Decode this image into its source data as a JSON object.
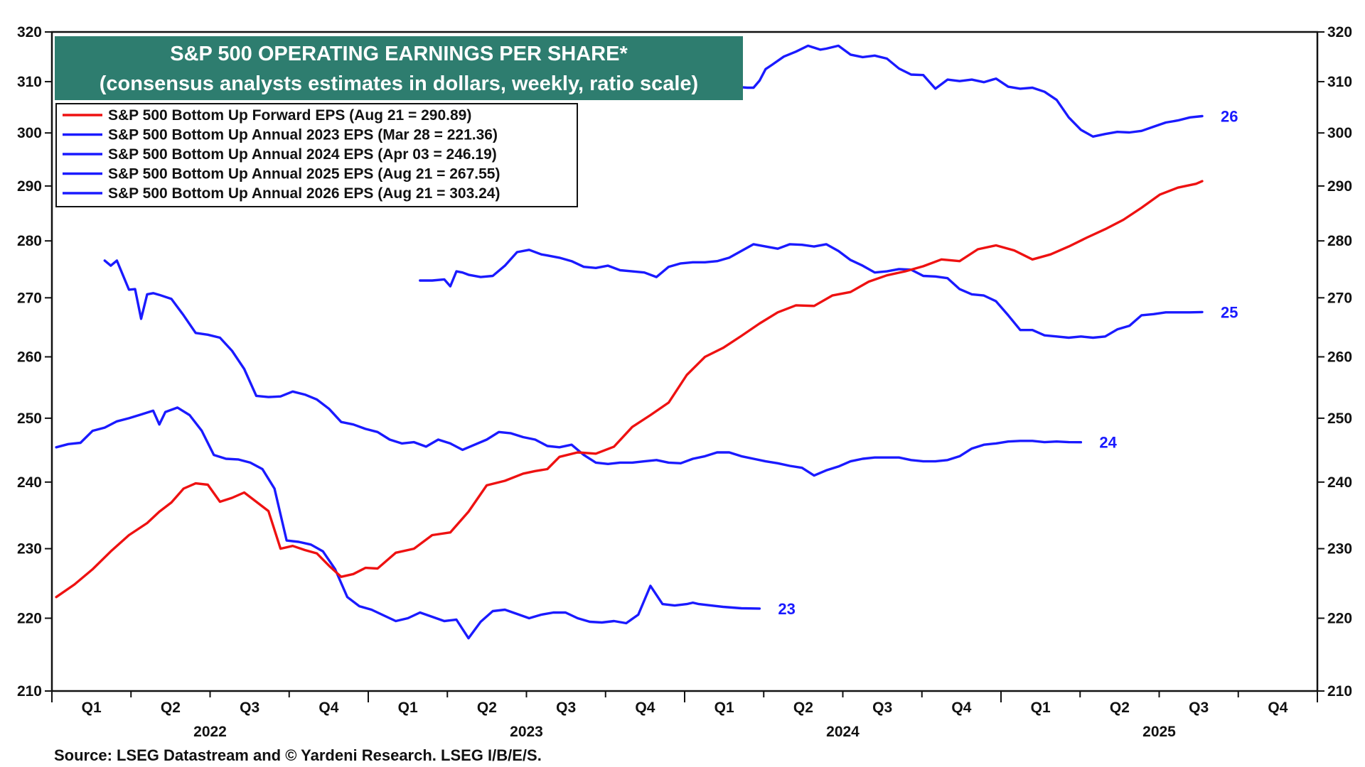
{
  "chart_data": {
    "type": "line",
    "title": "S&P 500 OPERATING EARNINGS PER SHARE*",
    "subtitle": "(consensus analysts estimates in dollars, weekly, ratio scale)",
    "source": "Source: LSEG Datastream and © Yardeni Research. LSEG I/B/E/S.",
    "scale": "log",
    "grid": false,
    "legend_position": "top-left",
    "ylim": [
      210,
      320
    ],
    "y_ticks": [
      "210",
      "220",
      "230",
      "240",
      "250",
      "260",
      "270",
      "280",
      "290",
      "300",
      "310",
      "320"
    ],
    "x_quarter_labels": [
      "Q1",
      "Q2",
      "Q3",
      "Q4",
      "Q1",
      "Q2",
      "Q3",
      "Q4",
      "Q1",
      "Q2",
      "Q3",
      "Q4",
      "Q1",
      "Q2",
      "Q3",
      "Q4"
    ],
    "x_year_labels": [
      "2022",
      "2023",
      "2024",
      "2025"
    ],
    "colors": {
      "title_bg": "#2e7d6f",
      "forward": "#ee1111",
      "annual": "#1a1aff"
    },
    "series": [
      {
        "name": "S&P 500 Bottom Up Forward EPS (Aug 21 = 290.89)",
        "color": "#ee1111",
        "x": [
          "2022-01-06",
          "2022-01-27",
          "2022-02-17",
          "2022-03-10",
          "2022-03-31",
          "2022-04-21",
          "2022-05-05",
          "2022-05-19",
          "2022-06-02",
          "2022-06-16",
          "2022-06-30",
          "2022-07-14",
          "2022-07-28",
          "2022-08-11",
          "2022-08-25",
          "2022-09-08",
          "2022-09-22",
          "2022-10-06",
          "2022-10-20",
          "2022-11-03",
          "2022-11-17",
          "2022-12-01",
          "2022-12-15",
          "2022-12-29",
          "2023-01-12",
          "2023-02-02",
          "2023-02-23",
          "2023-03-16",
          "2023-04-06",
          "2023-04-27",
          "2023-05-18",
          "2023-06-08",
          "2023-06-29",
          "2023-07-13",
          "2023-07-27",
          "2023-08-10",
          "2023-08-31",
          "2023-09-21",
          "2023-10-12",
          "2023-11-02",
          "2023-11-23",
          "2023-12-14",
          "2024-01-04",
          "2024-01-25",
          "2024-02-15",
          "2024-03-07",
          "2024-03-28",
          "2024-04-18",
          "2024-05-09",
          "2024-05-30",
          "2024-06-20",
          "2024-07-11",
          "2024-08-01",
          "2024-08-22",
          "2024-09-12",
          "2024-10-03",
          "2024-10-24",
          "2024-11-14",
          "2024-12-05",
          "2024-12-26",
          "2025-01-16",
          "2025-02-06",
          "2025-02-27",
          "2025-03-20",
          "2025-04-10",
          "2025-05-01",
          "2025-05-22",
          "2025-06-12",
          "2025-07-03",
          "2025-07-24",
          "2025-08-14",
          "2025-08-21"
        ],
        "values": [
          223.0,
          224.8,
          227.0,
          229.6,
          232.0,
          233.8,
          235.5,
          236.9,
          239.0,
          239.8,
          239.6,
          237.0,
          237.6,
          238.4,
          237.0,
          235.6,
          230.0,
          230.4,
          229.8,
          229.3,
          227.5,
          225.9,
          226.3,
          227.2,
          227.1,
          229.4,
          230.0,
          232.0,
          232.4,
          235.5,
          239.5,
          240.2,
          241.3,
          241.7,
          242.0,
          243.9,
          244.6,
          244.4,
          245.5,
          248.6,
          250.5,
          252.5,
          257.0,
          260.0,
          261.5,
          263.5,
          265.6,
          267.5,
          268.7,
          268.6,
          270.4,
          271.0,
          272.8,
          273.9,
          274.6,
          275.5,
          276.7,
          276.4,
          278.5,
          279.2,
          278.3,
          276.7,
          277.6,
          279.0,
          280.6,
          282.1,
          283.8,
          286.0,
          288.4,
          289.7,
          290.4,
          290.89
        ]
      },
      {
        "name": "S&P 500 Bottom Up Annual 2023 EPS (Mar 28 = 221.36)",
        "color": "#1a1aff",
        "end_label": "23",
        "x": [
          "2022-01-06",
          "2022-01-20",
          "2022-02-03",
          "2022-02-17",
          "2022-03-03",
          "2022-03-17",
          "2022-03-31",
          "2022-04-14",
          "2022-04-28",
          "2022-05-05",
          "2022-05-12",
          "2022-05-26",
          "2022-06-09",
          "2022-06-23",
          "2022-07-07",
          "2022-07-21",
          "2022-08-04",
          "2022-08-18",
          "2022-09-01",
          "2022-09-15",
          "2022-09-29",
          "2022-10-13",
          "2022-10-27",
          "2022-11-10",
          "2022-11-24",
          "2022-12-08",
          "2022-12-22",
          "2023-01-05",
          "2023-01-19",
          "2023-02-02",
          "2023-02-16",
          "2023-03-02",
          "2023-03-16",
          "2023-03-30",
          "2023-04-13",
          "2023-04-27",
          "2023-05-11",
          "2023-05-25",
          "2023-06-08",
          "2023-06-22",
          "2023-07-06",
          "2023-07-20",
          "2023-08-03",
          "2023-08-17",
          "2023-08-31",
          "2023-09-14",
          "2023-09-28",
          "2023-10-12",
          "2023-10-26",
          "2023-11-09",
          "2023-11-23",
          "2023-12-07",
          "2023-12-21",
          "2024-01-04",
          "2024-01-11",
          "2024-01-18",
          "2024-02-01",
          "2024-02-15",
          "2024-03-07",
          "2024-03-28"
        ],
        "values": [
          245.4,
          245.9,
          246.1,
          248.0,
          248.5,
          249.5,
          250.0,
          250.6,
          251.2,
          249.0,
          251.0,
          251.7,
          250.5,
          248.0,
          244.2,
          243.6,
          243.5,
          243.0,
          242.0,
          239.0,
          231.2,
          231.0,
          230.6,
          229.6,
          227.0,
          223.0,
          221.7,
          221.2,
          220.4,
          219.6,
          220.0,
          220.8,
          220.2,
          219.6,
          219.8,
          217.2,
          219.5,
          221.0,
          221.2,
          220.6,
          220.0,
          220.5,
          220.8,
          220.8,
          220.0,
          219.5,
          219.4,
          219.6,
          219.3,
          220.5,
          224.6,
          222.0,
          221.8,
          222.0,
          222.2,
          222.0,
          221.8,
          221.6,
          221.4,
          221.36
        ]
      },
      {
        "name": "S&P 500 Bottom Up Annual 2024 EPS (Apr 03 = 246.19)",
        "color": "#1a1aff",
        "end_label": "24",
        "x": [
          "2022-03-03",
          "2022-03-10",
          "2022-03-17",
          "2022-03-31",
          "2022-04-07",
          "2022-04-14",
          "2022-04-21",
          "2022-04-28",
          "2022-05-05",
          "2022-05-19",
          "2022-06-02",
          "2022-06-16",
          "2022-06-30",
          "2022-07-14",
          "2022-07-28",
          "2022-08-11",
          "2022-08-25",
          "2022-09-08",
          "2022-09-22",
          "2022-10-06",
          "2022-10-20",
          "2022-11-03",
          "2022-11-17",
          "2022-12-01",
          "2022-12-15",
          "2022-12-29",
          "2023-01-12",
          "2023-01-26",
          "2023-02-09",
          "2023-02-23",
          "2023-03-09",
          "2023-03-23",
          "2023-04-06",
          "2023-04-20",
          "2023-05-04",
          "2023-05-18",
          "2023-06-01",
          "2023-06-15",
          "2023-06-29",
          "2023-07-13",
          "2023-07-27",
          "2023-08-10",
          "2023-08-24",
          "2023-09-07",
          "2023-09-21",
          "2023-10-05",
          "2023-10-19",
          "2023-11-02",
          "2023-11-16",
          "2023-11-30",
          "2023-12-14",
          "2023-12-28",
          "2024-01-11",
          "2024-01-25",
          "2024-02-08",
          "2024-02-22",
          "2024-03-07",
          "2024-03-21",
          "2024-04-04",
          "2024-04-18",
          "2024-05-02",
          "2024-05-16",
          "2024-05-30",
          "2024-06-13",
          "2024-06-27",
          "2024-07-11",
          "2024-07-25",
          "2024-08-08",
          "2024-08-22",
          "2024-09-05",
          "2024-09-19",
          "2024-10-03",
          "2024-10-17",
          "2024-10-31",
          "2024-11-14",
          "2024-11-28",
          "2024-12-12",
          "2024-12-26",
          "2025-01-09",
          "2025-01-23",
          "2025-02-06",
          "2025-02-20",
          "2025-03-06",
          "2025-03-20",
          "2025-04-03"
        ],
        "values": [
          276.5,
          275.6,
          276.5,
          271.4,
          271.5,
          266.4,
          270.6,
          270.8,
          270.5,
          269.8,
          267.0,
          264.0,
          263.7,
          263.2,
          261.0,
          258.0,
          253.6,
          253.4,
          253.5,
          254.3,
          253.8,
          253.0,
          251.5,
          249.4,
          249.0,
          248.3,
          247.8,
          246.6,
          246.0,
          246.2,
          245.5,
          246.6,
          246.0,
          245.0,
          245.8,
          246.6,
          247.8,
          247.6,
          247.0,
          246.6,
          245.6,
          245.4,
          245.8,
          244.2,
          243.0,
          242.8,
          243.0,
          243.0,
          243.2,
          243.4,
          243.0,
          242.9,
          243.6,
          244.0,
          244.6,
          244.6,
          244.0,
          243.6,
          243.2,
          242.9,
          242.5,
          242.2,
          241.0,
          241.8,
          242.4,
          243.2,
          243.6,
          243.8,
          243.8,
          243.8,
          243.4,
          243.2,
          243.2,
          243.4,
          244.0,
          245.2,
          245.8,
          246.0,
          246.3,
          246.4,
          246.4,
          246.2,
          246.3,
          246.2,
          246.19
        ]
      },
      {
        "name": "S&P 500 Bottom Up Annual 2025 EPS (Aug 21 = 267.55)",
        "color": "#1a1aff",
        "end_label": "25",
        "x": [
          "2023-03-02",
          "2023-03-16",
          "2023-03-30",
          "2023-04-06",
          "2023-04-13",
          "2023-04-20",
          "2023-04-27",
          "2023-05-11",
          "2023-05-25",
          "2023-06-08",
          "2023-06-22",
          "2023-07-06",
          "2023-07-20",
          "2023-07-27",
          "2023-08-10",
          "2023-08-24",
          "2023-09-07",
          "2023-09-21",
          "2023-10-05",
          "2023-10-19",
          "2023-11-02",
          "2023-11-16",
          "2023-11-30",
          "2023-12-14",
          "2023-12-28",
          "2024-01-11",
          "2024-01-25",
          "2024-02-08",
          "2024-02-22",
          "2024-03-07",
          "2024-03-21",
          "2024-04-04",
          "2024-04-18",
          "2024-05-02",
          "2024-05-16",
          "2024-05-30",
          "2024-06-13",
          "2024-06-27",
          "2024-07-11",
          "2024-07-25",
          "2024-08-08",
          "2024-08-22",
          "2024-09-05",
          "2024-09-19",
          "2024-10-03",
          "2024-10-17",
          "2024-10-31",
          "2024-11-14",
          "2024-11-28",
          "2024-12-12",
          "2024-12-26",
          "2025-01-09",
          "2025-01-23",
          "2025-02-06",
          "2025-02-20",
          "2025-03-06",
          "2025-03-20",
          "2025-04-03",
          "2025-04-17",
          "2025-05-01",
          "2025-05-15",
          "2025-05-29",
          "2025-06-12",
          "2025-06-26",
          "2025-07-10",
          "2025-07-24",
          "2025-08-07",
          "2025-08-21"
        ],
        "values": [
          273.0,
          273.0,
          273.2,
          272.0,
          274.6,
          274.4,
          274.0,
          273.6,
          273.8,
          275.6,
          278.0,
          278.4,
          277.6,
          277.4,
          277.0,
          276.4,
          275.4,
          275.2,
          275.6,
          274.8,
          274.6,
          274.4,
          273.6,
          275.4,
          276.0,
          276.2,
          276.2,
          276.4,
          277.0,
          278.2,
          279.4,
          279.0,
          278.6,
          279.4,
          279.3,
          279.0,
          279.4,
          278.2,
          276.6,
          275.6,
          274.4,
          274.6,
          275.0,
          274.9,
          273.8,
          273.7,
          273.4,
          271.5,
          270.6,
          270.4,
          269.4,
          267.0,
          264.5,
          264.5,
          263.6,
          263.4,
          263.2,
          263.4,
          263.2,
          263.4,
          264.6,
          265.2,
          267.0,
          267.2,
          267.5,
          267.5,
          267.5,
          267.55
        ]
      },
      {
        "name": "S&P 500 Bottom Up Annual 2026 EPS (Aug 21 = 303.24)",
        "color": "#1a1aff",
        "end_label": "26",
        "x": [
          "2024-03-07",
          "2024-03-14",
          "2024-03-21",
          "2024-03-28",
          "2024-04-04",
          "2024-04-11",
          "2024-04-25",
          "2024-05-09",
          "2024-05-23",
          "2024-06-06",
          "2024-06-13",
          "2024-06-27",
          "2024-07-11",
          "2024-07-25",
          "2024-08-08",
          "2024-08-22",
          "2024-09-05",
          "2024-09-19",
          "2024-10-03",
          "2024-10-17",
          "2024-10-31",
          "2024-11-14",
          "2024-11-28",
          "2024-12-12",
          "2024-12-26",
          "2025-01-09",
          "2025-01-23",
          "2025-02-06",
          "2025-02-20",
          "2025-03-06",
          "2025-03-20",
          "2025-04-03",
          "2025-04-17",
          "2025-05-01",
          "2025-05-15",
          "2025-05-29",
          "2025-06-12",
          "2025-06-26",
          "2025-07-10",
          "2025-07-24",
          "2025-08-07",
          "2025-08-21"
        ],
        "values": [
          308.9,
          308.8,
          308.8,
          310.2,
          312.5,
          313.3,
          315.0,
          316.0,
          317.2,
          316.4,
          316.6,
          317.2,
          315.4,
          314.9,
          315.2,
          314.6,
          312.6,
          311.4,
          311.3,
          308.6,
          310.4,
          310.1,
          310.4,
          309.9,
          310.6,
          309.0,
          308.6,
          308.8,
          308.0,
          306.4,
          303.0,
          300.6,
          299.3,
          299.8,
          300.2,
          300.1,
          300.4,
          301.2,
          302.0,
          302.4,
          303.0,
          303.24
        ]
      }
    ]
  }
}
